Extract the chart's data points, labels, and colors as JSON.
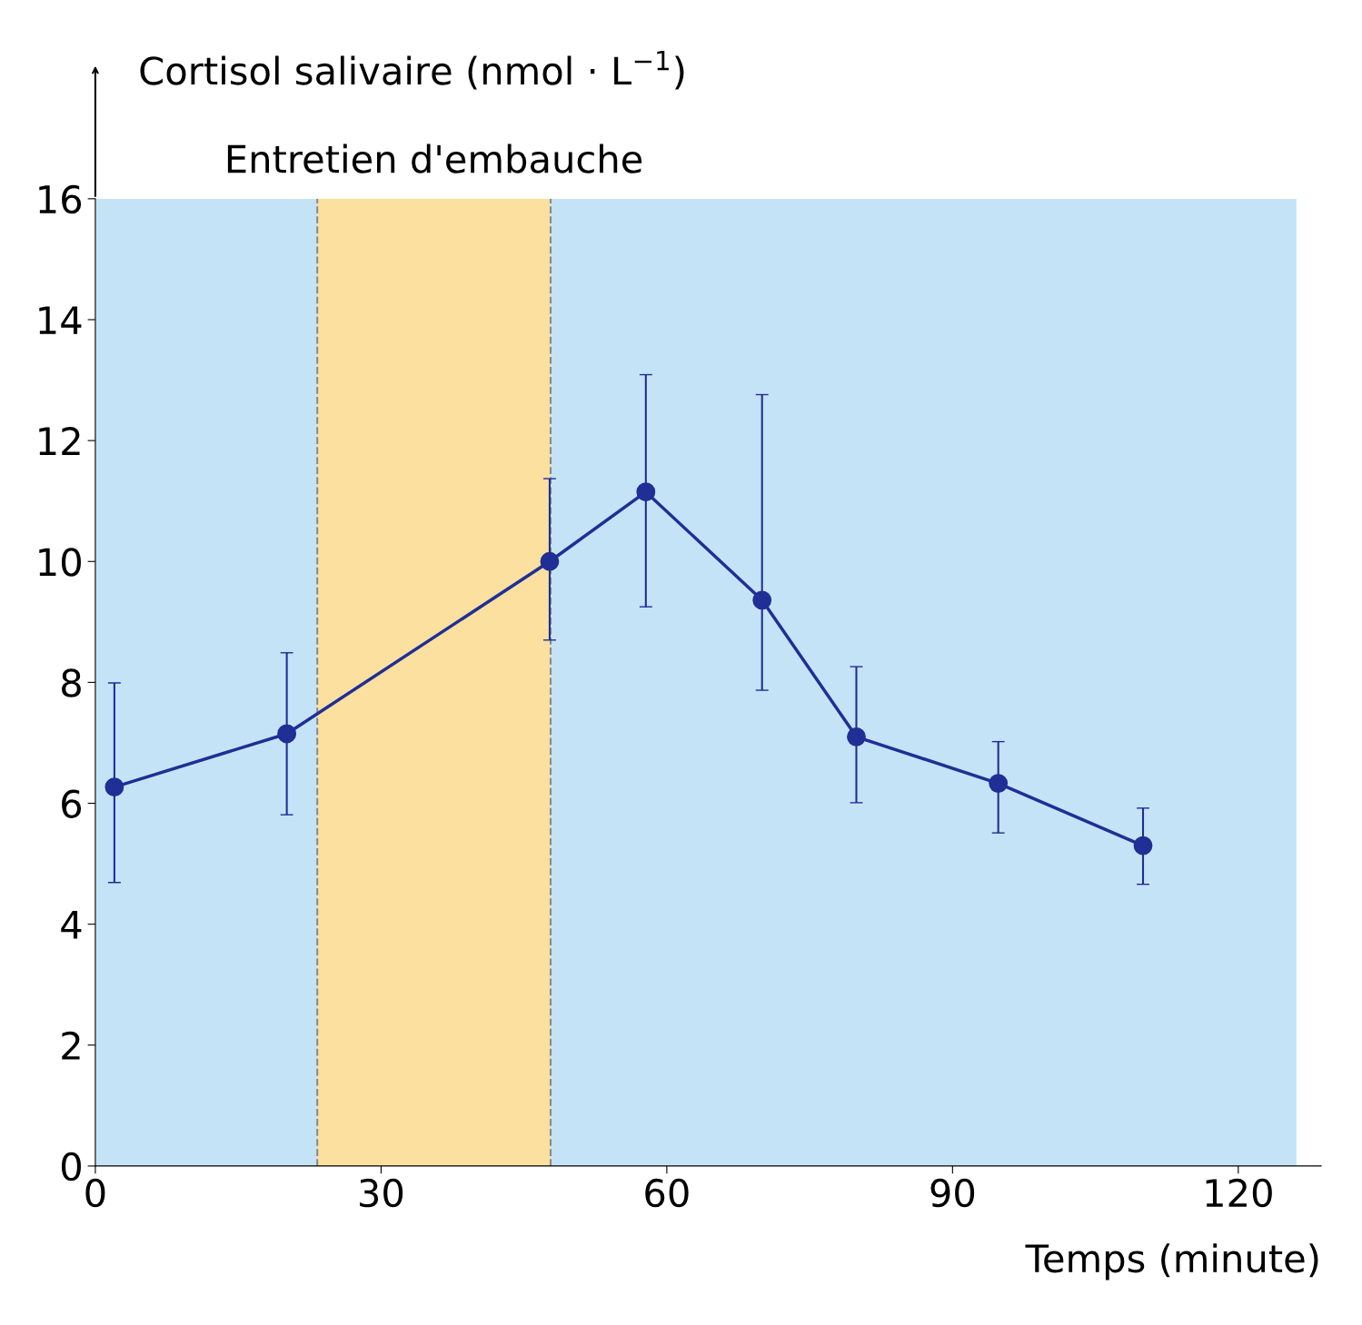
{
  "chart_data": {
    "type": "line",
    "ylabel": "Cortisol salivaire (nmol · L$^{−1}$)",
    "xlabel": "Temps (minute)",
    "x": [
      2.0,
      20.1,
      47.7,
      57.8,
      70.0,
      79.9,
      94.8,
      110.0
    ],
    "series": [
      {
        "color": "#1f2f95",
        "values": [
          6.27,
          7.15,
          10.0,
          11.15,
          9.36,
          7.1,
          6.33,
          5.3
        ],
        "errors": [
          [
            4.69,
            7.99
          ],
          [
            5.81,
            8.49
          ],
          [
            8.7,
            11.37
          ],
          [
            9.25,
            13.09
          ],
          [
            7.87,
            12.76
          ],
          [
            6.01,
            8.26
          ],
          [
            5.51,
            7.02
          ],
          [
            4.66,
            5.92
          ]
        ]
      }
    ],
    "xlim": [
      0,
      128.7
    ],
    "ylim": [
      0,
      16
    ],
    "xticks": [
      0,
      30,
      60,
      90,
      120
    ],
    "yticks": [
      0,
      2,
      4,
      6,
      8,
      10,
      12,
      14,
      16
    ],
    "bands": [
      {
        "axis": "x",
        "from": 0,
        "to": 126.1,
        "label": null,
        "color": "#c5e3f6"
      },
      {
        "axis": "x",
        "from": 23.3,
        "to": 47.8,
        "label": "Entretien d'embauche",
        "color": "#fbe0a0"
      }
    ],
    "ref_lines": [
      {
        "axis": "x",
        "value": 23.3,
        "label": null,
        "color": "#8a8a8a",
        "line_style": "dashed"
      },
      {
        "axis": "x",
        "value": 47.8,
        "label": null,
        "color": "#8a8a8a",
        "line_style": "dashed"
      }
    ],
    "marker": "circle",
    "line_style": "solid",
    "grid": false
  }
}
